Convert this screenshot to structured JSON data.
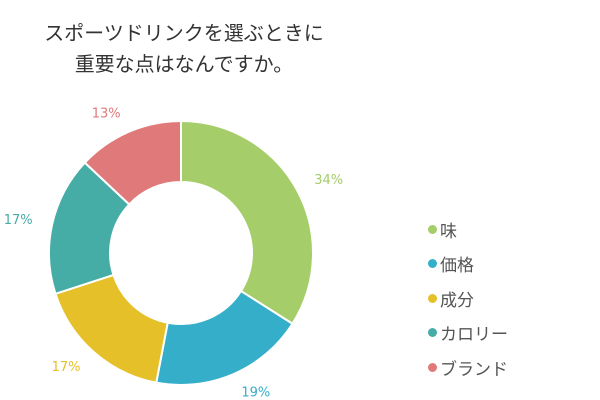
{
  "chart_data": {
    "type": "pie",
    "title_lines": [
      "スポーツドリンクを選ぶときに",
      "重要な点はなんですか。"
    ],
    "categories": [
      "味",
      "価格",
      "成分",
      "カロリー",
      "ブランド"
    ],
    "values": [
      34,
      19,
      17,
      17,
      13
    ],
    "value_labels": [
      "34%",
      "19%",
      "17%",
      "17%",
      "13%"
    ],
    "colors": [
      "#a5cd69",
      "#35aec9",
      "#e5c028",
      "#46aca6",
      "#e07a7a"
    ],
    "donut": true,
    "legend_position": "right"
  }
}
